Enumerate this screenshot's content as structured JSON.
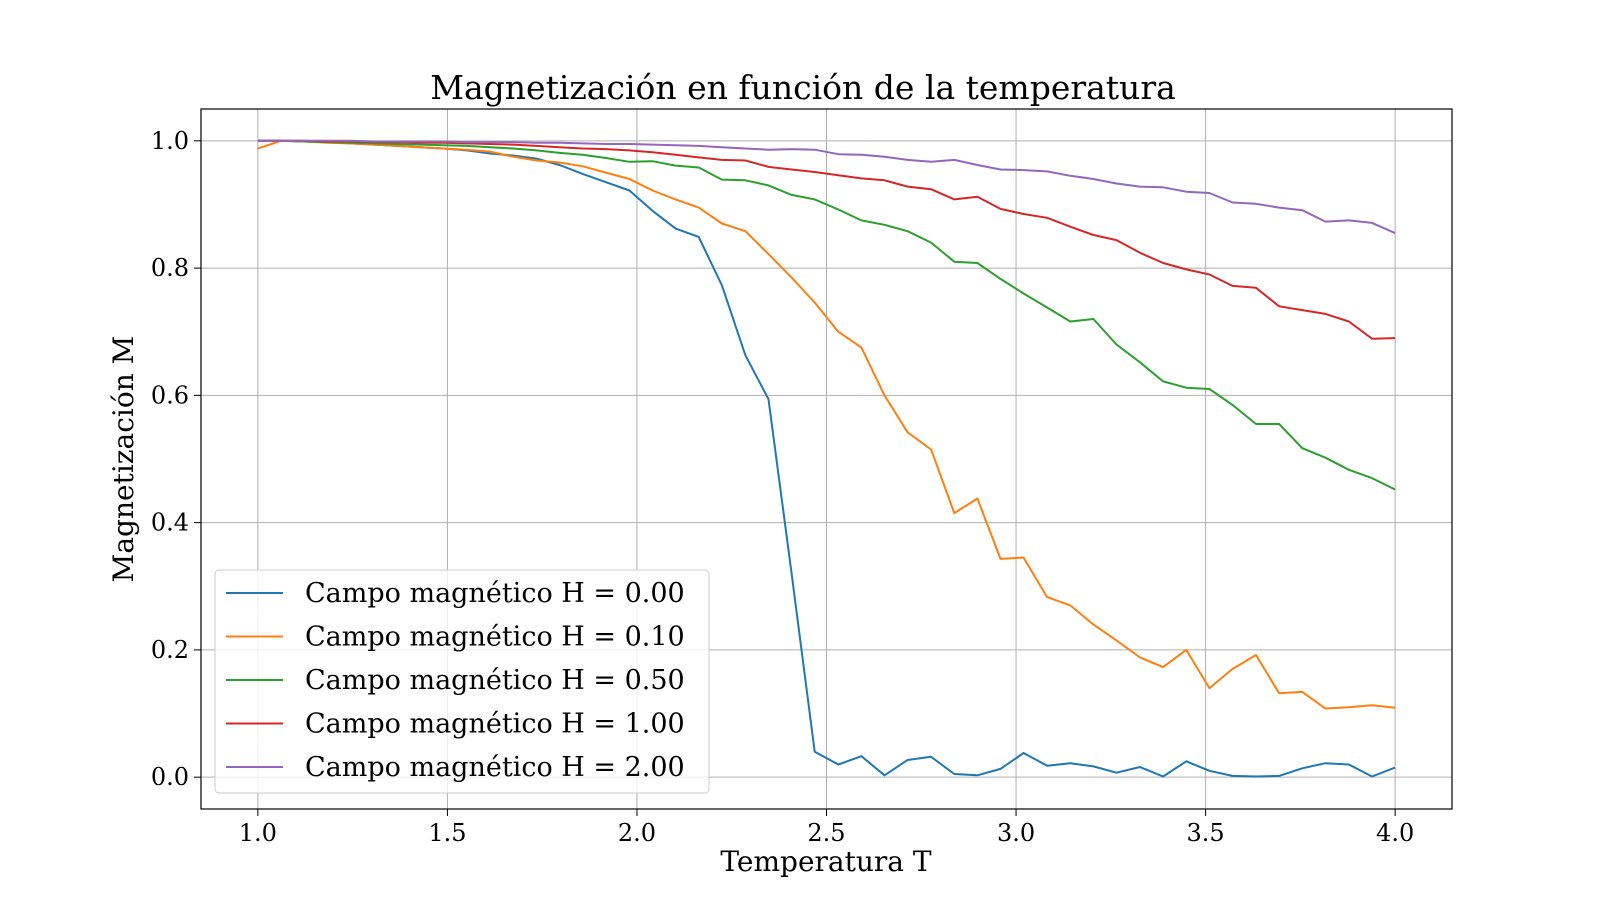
{
  "chart_data": {
    "type": "line",
    "title": "Magnetización en función de la temperatura",
    "xlabel": "Temperatura T",
    "ylabel": "Magnetización M",
    "xlim": [
      0.85,
      4.15
    ],
    "ylim": [
      -0.05,
      1.05
    ],
    "xticks": [
      1.0,
      1.5,
      2.0,
      2.5,
      3.0,
      3.5,
      4.0
    ],
    "xtick_labels": [
      "1.0",
      "1.5",
      "2.0",
      "2.5",
      "3.0",
      "3.5",
      "4.0"
    ],
    "yticks": [
      0.0,
      0.2,
      0.4,
      0.6,
      0.8,
      1.0
    ],
    "ytick_labels": [
      "0.0",
      "0.2",
      "0.4",
      "0.6",
      "0.8",
      "1.0"
    ],
    "grid": true,
    "legend_position": "lower-left",
    "x": [
      1.0,
      1.061,
      1.122,
      1.184,
      1.245,
      1.306,
      1.367,
      1.429,
      1.49,
      1.551,
      1.612,
      1.673,
      1.735,
      1.796,
      1.857,
      1.918,
      1.98,
      2.041,
      2.102,
      2.163,
      2.224,
      2.286,
      2.347,
      2.408,
      2.469,
      2.531,
      2.592,
      2.653,
      2.714,
      2.776,
      2.837,
      2.898,
      2.959,
      3.02,
      3.082,
      3.143,
      3.204,
      3.265,
      3.327,
      3.388,
      3.449,
      3.51,
      3.571,
      3.633,
      3.694,
      3.755,
      3.816,
      3.878,
      3.939,
      4.0
    ],
    "series": [
      {
        "name": "Campo magnético H = 0.00",
        "color": "#1f77b4",
        "values": [
          1.0,
          1.0,
          0.999,
          0.998,
          0.996,
          0.994,
          0.992,
          0.99,
          0.988,
          0.985,
          0.98,
          0.977,
          0.972,
          0.962,
          0.948,
          0.935,
          0.922,
          0.89,
          0.862,
          0.849,
          0.773,
          0.663,
          0.594,
          0.32,
          0.04,
          0.02,
          0.033,
          0.003,
          0.027,
          0.032,
          0.005,
          0.003,
          0.013,
          0.038,
          0.018,
          0.022,
          0.017,
          0.007,
          0.016,
          0.001,
          0.025,
          0.01,
          0.002,
          0.001,
          0.002,
          0.014,
          0.022,
          0.02,
          0.001,
          0.015
        ]
      },
      {
        "name": "Campo magnético H = 0.10",
        "color": "#ff7f0e",
        "values": [
          0.988,
          1.0,
          0.999,
          0.997,
          0.996,
          0.994,
          0.992,
          0.99,
          0.988,
          0.986,
          0.983,
          0.975,
          0.969,
          0.966,
          0.96,
          0.95,
          0.94,
          0.922,
          0.908,
          0.895,
          0.87,
          0.858,
          0.822,
          0.785,
          0.746,
          0.7,
          0.675,
          0.6,
          0.542,
          0.515,
          0.415,
          0.438,
          0.343,
          0.345,
          0.283,
          0.27,
          0.24,
          0.215,
          0.188,
          0.173,
          0.2,
          0.14,
          0.17,
          0.192,
          0.132,
          0.134,
          0.108,
          0.11,
          0.113,
          0.109
        ]
      },
      {
        "name": "Campo magnético H = 0.50",
        "color": "#2ca02c",
        "values": [
          1.0,
          1.0,
          0.999,
          0.998,
          0.997,
          0.996,
          0.995,
          0.994,
          0.993,
          0.992,
          0.99,
          0.988,
          0.985,
          0.981,
          0.978,
          0.973,
          0.967,
          0.968,
          0.961,
          0.958,
          0.939,
          0.938,
          0.93,
          0.915,
          0.908,
          0.892,
          0.875,
          0.868,
          0.858,
          0.84,
          0.81,
          0.808,
          0.783,
          0.76,
          0.738,
          0.716,
          0.72,
          0.68,
          0.652,
          0.622,
          0.612,
          0.61,
          0.585,
          0.555,
          0.555,
          0.517,
          0.502,
          0.483,
          0.47,
          0.452
        ]
      },
      {
        "name": "Campo magnético H = 1.00",
        "color": "#d62728",
        "values": [
          1.0,
          1.0,
          1.0,
          0.999,
          0.999,
          0.998,
          0.998,
          0.997,
          0.997,
          0.996,
          0.995,
          0.994,
          0.992,
          0.99,
          0.988,
          0.987,
          0.985,
          0.982,
          0.978,
          0.974,
          0.97,
          0.969,
          0.959,
          0.955,
          0.951,
          0.946,
          0.941,
          0.938,
          0.928,
          0.924,
          0.908,
          0.912,
          0.893,
          0.885,
          0.879,
          0.865,
          0.852,
          0.844,
          0.824,
          0.808,
          0.798,
          0.79,
          0.772,
          0.769,
          0.74,
          0.734,
          0.728,
          0.716,
          0.689,
          0.69
        ]
      },
      {
        "name": "Campo magnético H = 2.00",
        "color": "#9467bd",
        "values": [
          1.0,
          1.0,
          1.0,
          1.0,
          1.0,
          0.999,
          0.999,
          0.999,
          0.999,
          0.998,
          0.998,
          0.998,
          0.997,
          0.997,
          0.996,
          0.995,
          0.995,
          0.994,
          0.993,
          0.992,
          0.99,
          0.988,
          0.986,
          0.987,
          0.986,
          0.979,
          0.978,
          0.975,
          0.97,
          0.967,
          0.97,
          0.962,
          0.955,
          0.954,
          0.952,
          0.945,
          0.94,
          0.933,
          0.928,
          0.927,
          0.92,
          0.918,
          0.903,
          0.901,
          0.895,
          0.891,
          0.873,
          0.875,
          0.871,
          0.855
        ]
      }
    ]
  }
}
